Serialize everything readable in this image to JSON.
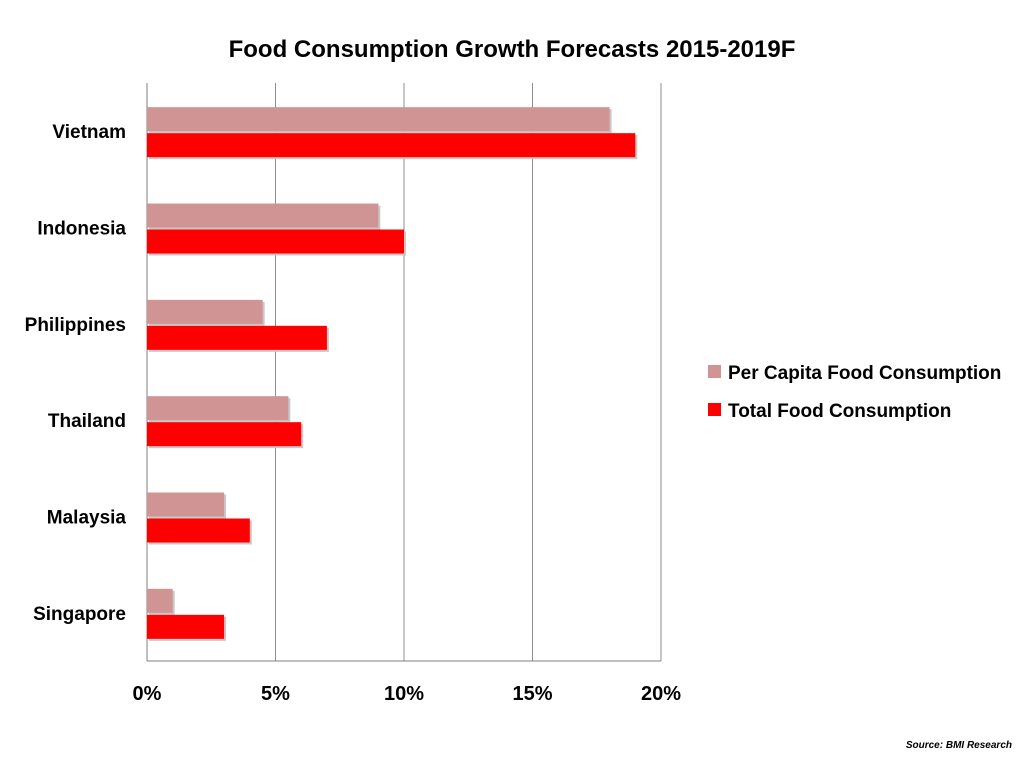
{
  "chart_data": {
    "type": "bar",
    "orientation": "horizontal",
    "title": "Food Consumption Growth Forecasts 2015-2019F",
    "categories": [
      "Vietnam",
      "Indonesia",
      "Philippines",
      "Thailand",
      "Malaysia",
      "Singapore"
    ],
    "series": [
      {
        "name": "Per Capita Food Consumption",
        "color": "#d09494",
        "values": [
          18,
          9,
          4.5,
          5.5,
          3,
          1
        ]
      },
      {
        "name": "Total Food Consumption",
        "color": "#ff0000",
        "values": [
          19,
          10,
          7,
          6,
          4,
          3
        ]
      }
    ],
    "xlim": [
      0,
      20
    ],
    "xticks": [
      "0%",
      "5%",
      "10%",
      "15%",
      "20%"
    ],
    "xlabel": "",
    "ylabel": "",
    "grid": true,
    "legend_position": "right",
    "source": "Source: BMI Research"
  }
}
